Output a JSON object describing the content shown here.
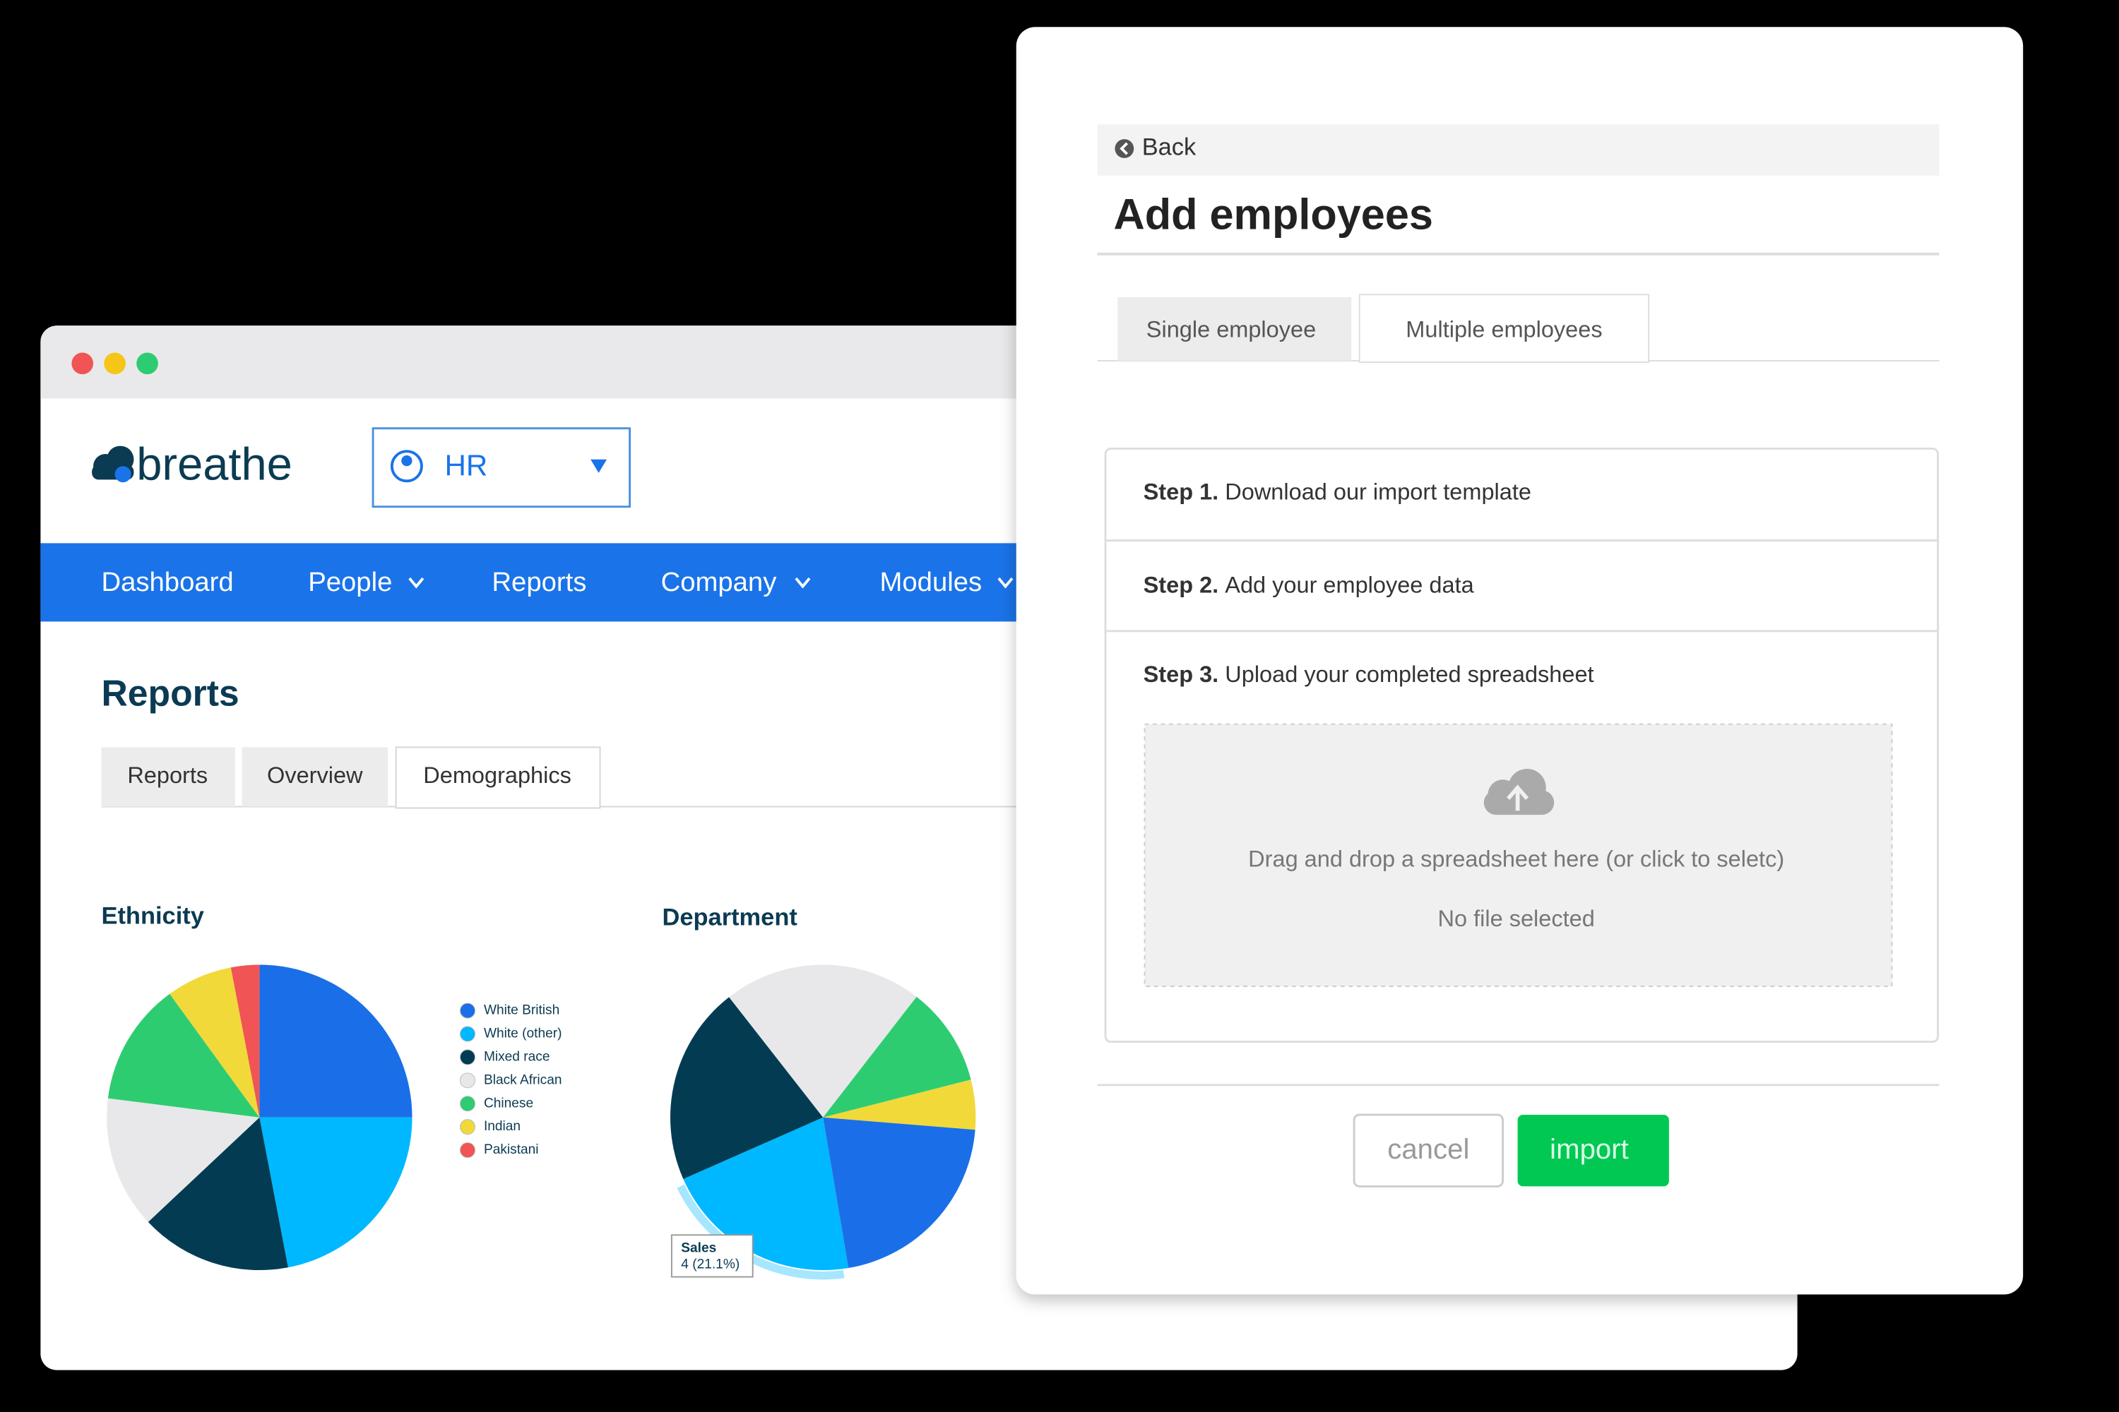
{
  "browser": {
    "logo": "breathe",
    "selector": "HR",
    "nav": [
      "Dashboard",
      "People",
      "Reports",
      "Company",
      "Modules"
    ],
    "page_title": "Reports",
    "tabs": [
      "Reports",
      "Overview",
      "Demographics"
    ]
  },
  "chart_data": [
    {
      "type": "pie",
      "title": "Ethnicity",
      "categories": [
        "White British",
        "White (other)",
        "Mixed race",
        "Black African",
        "Chinese",
        "Indian",
        "Pakistani"
      ],
      "values": [
        25,
        22,
        16,
        14,
        13,
        7,
        3
      ],
      "colors": [
        "#1a6fe8",
        "#00b8ff",
        "#033c52",
        "#e8e8ea",
        "#2ecc71",
        "#f1d93a",
        "#f05454"
      ],
      "legend": "right"
    },
    {
      "type": "pie",
      "title": "Department",
      "categories": [
        null,
        null,
        null,
        null,
        "Sales",
        null
      ],
      "values": [
        4,
        2,
        1,
        4,
        4,
        4
      ],
      "value_labels": [
        null,
        null,
        null,
        null,
        "4 (21.1%)",
        null
      ],
      "colors": [
        "#e8e8ea",
        "#2ecc71",
        "#f1d93a",
        "#1a6fe8",
        "#00b8ff",
        "#033c52"
      ]
    }
  ],
  "dialog": {
    "back": "Back",
    "title": "Add employees",
    "tabs": [
      "Single employee",
      "Multiple employees"
    ],
    "steps": [
      {
        "label": "Step 1.",
        "text": "Download our import template"
      },
      {
        "label": "Step 2.",
        "text": "Add your employee data"
      },
      {
        "label": "Step 3.",
        "text": "Upload your completed spreadsheet"
      }
    ],
    "dropzone": {
      "text": "Drag and drop a spreadsheet here (or click to seletc)",
      "status": "No file selected"
    },
    "buttons": [
      "cancel",
      "import"
    ]
  }
}
